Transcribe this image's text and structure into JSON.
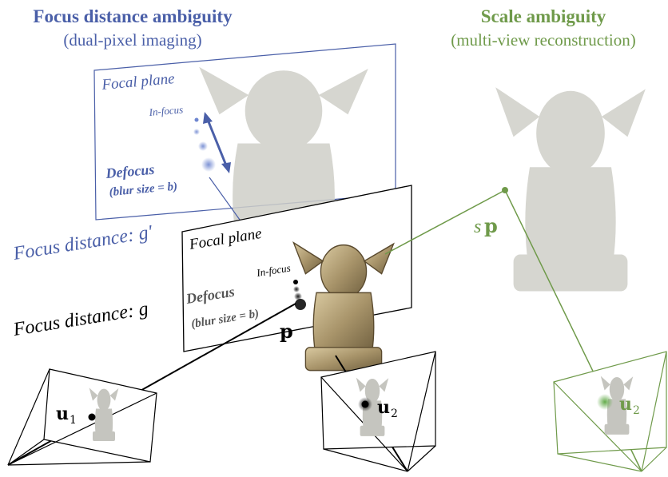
{
  "colors": {
    "blue": "#4a5fa8",
    "green": "#6f9a4a",
    "black": "#000000",
    "ghost_statue": "#c9c9c3",
    "statue": "#b8a77c"
  },
  "left_panel": {
    "title": "Focus distance ambiguity",
    "subtitle": "(dual-pixel imaging)",
    "far_plane": {
      "label": "Focal plane",
      "in_focus_label": "In-focus",
      "defocus_label": "Defocus",
      "blur_label": "(blur size = b)"
    },
    "near_plane": {
      "label": "Focal plane",
      "in_focus_label": "In-focus",
      "defocus_label": "Defocus",
      "blur_label": "(blur size = b)"
    },
    "focus_distance_far": "Focus distance: g′",
    "focus_distance_near": "Focus distance: g",
    "point_label": "p",
    "camera1_label": "u",
    "camera1_sub": "1",
    "camera2_label": "u",
    "camera2_sub": "2"
  },
  "right_panel": {
    "title": "Scale ambiguity",
    "subtitle": "(multi-view reconstruction)",
    "scaled_point_label": "s",
    "scaled_point_bold": "p",
    "camera_label": "u",
    "camera_sub": "2"
  },
  "icons": {
    "statue": "gargoyle-statue-icon",
    "camera": "camera-frustum-icon"
  }
}
